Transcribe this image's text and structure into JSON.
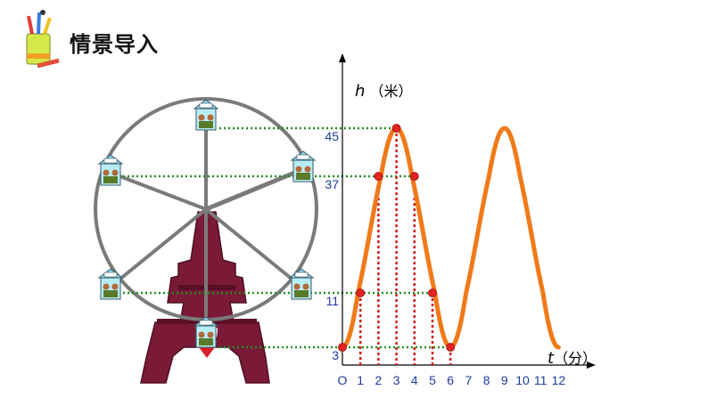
{
  "header": {
    "title": "情景导入",
    "icon": "pencil-cup-icon"
  },
  "colors": {
    "curve": "#f07a1a",
    "point": "#e32222",
    "guide_green": "#1f8f1f",
    "guide_red": "#d61a1a",
    "wheel": "#7a7a7a",
    "tower": "#7a1a36",
    "tick_text": "#1e3a9a"
  },
  "chart_data": {
    "type": "line",
    "xlabel_var": "t",
    "xlabel_unit": "（分）",
    "ylabel_var": "h",
    "ylabel_unit": "（米）",
    "origin_label": "O",
    "x_ticks": [
      "1",
      "2",
      "3",
      "4",
      "5",
      "6",
      "7",
      "8",
      "9",
      "10",
      "11",
      "12"
    ],
    "y_ticks": [
      "3",
      "11",
      "37",
      "45"
    ],
    "xlim": [
      0,
      12
    ],
    "series": [
      {
        "values_x": [
          0,
          1,
          2,
          3,
          4,
          5,
          6,
          7,
          8,
          9,
          10,
          11,
          12
        ],
        "values_y": [
          3,
          11,
          37,
          45,
          37,
          11,
          3,
          11,
          37,
          45,
          37,
          11,
          3
        ]
      }
    ],
    "highlight_points": [
      {
        "t": 0,
        "h": 3
      },
      {
        "t": 1,
        "h": 11
      },
      {
        "t": 2,
        "h": 37
      },
      {
        "t": 3,
        "h": 45
      },
      {
        "t": 4,
        "h": 37
      },
      {
        "t": 5,
        "h": 11
      },
      {
        "t": 6,
        "h": 3
      }
    ]
  }
}
